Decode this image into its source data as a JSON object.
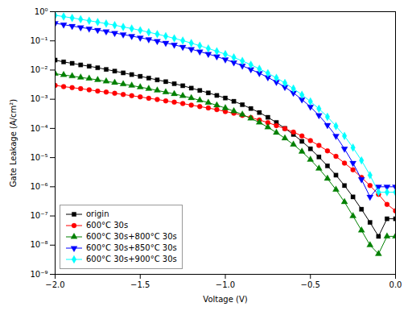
{
  "chart_data": {
    "type": "line",
    "xlabel": "Voltage (V)",
    "ylabel": "Gate Leakage (A/cm²)",
    "log": "y",
    "legend": "lower left",
    "xlim": [
      -2.0,
      0.0
    ],
    "xticks": [
      {
        "value": -2.0,
        "label": "−2.0"
      },
      {
        "value": -1.5,
        "label": "−1.5"
      },
      {
        "value": -1.0,
        "label": "−1.0"
      },
      {
        "value": -0.5,
        "label": "−0.5"
      },
      {
        "value": 0.0,
        "label": "0.0"
      }
    ],
    "ylim": [
      1e-09,
      1
    ],
    "yticks": [
      {
        "value": 1e-09,
        "label": "10⁻⁹"
      },
      {
        "value": 1e-08,
        "label": "10⁻⁸"
      },
      {
        "value": 1e-07,
        "label": "10⁻⁷"
      },
      {
        "value": 1e-06,
        "label": "10⁻⁶"
      },
      {
        "value": 1e-05,
        "label": "10⁻⁵"
      },
      {
        "value": 0.0001,
        "label": "10⁻⁴"
      },
      {
        "value": 0.001,
        "label": "10⁻³"
      },
      {
        "value": 0.01,
        "label": "10⁻²"
      },
      {
        "value": 0.1,
        "label": "10⁻¹"
      },
      {
        "value": 1,
        "label": "10⁰"
      }
    ],
    "x": [
      -2.0,
      -1.95,
      -1.9,
      -1.85,
      -1.8,
      -1.75,
      -1.7,
      -1.65,
      -1.6,
      -1.55,
      -1.5,
      -1.45,
      -1.4,
      -1.35,
      -1.3,
      -1.25,
      -1.2,
      -1.15,
      -1.1,
      -1.05,
      -1.0,
      -0.95,
      -0.9,
      -0.85,
      -0.8,
      -0.75,
      -0.7,
      -0.65,
      -0.6,
      -0.55,
      -0.5,
      -0.45,
      -0.4,
      -0.35,
      -0.3,
      -0.25,
      -0.2,
      -0.15,
      -0.1,
      -0.05,
      0.0
    ],
    "series": [
      {
        "name": "origin",
        "color": "black",
        "marker": "square",
        "values": [
          0.022,
          0.019,
          0.017,
          0.015,
          0.0135,
          0.012,
          0.0105,
          0.0092,
          0.008,
          0.007,
          0.0061,
          0.0053,
          0.0046,
          0.004,
          0.0034,
          0.0029,
          0.0024,
          0.002,
          0.00165,
          0.00135,
          0.0011,
          0.00085,
          0.00065,
          0.00048,
          0.00035,
          0.00024,
          0.00016,
          0.0001,
          6.2e-05,
          3.6e-05,
          2e-05,
          1.05e-05,
          5.2e-06,
          2.5e-06,
          1.1e-06,
          4.5e-07,
          1.7e-07,
          6e-08,
          2e-08,
          8e-08,
          8e-08
        ]
      },
      {
        "name": "600°C 30s",
        "color": "red",
        "marker": "circle",
        "values": [
          0.003,
          0.0027,
          0.0025,
          0.0023,
          0.0021,
          0.0019,
          0.00175,
          0.0016,
          0.00145,
          0.00132,
          0.0012,
          0.00108,
          0.00098,
          0.00088,
          0.00079,
          0.00071,
          0.00063,
          0.00056,
          0.0005,
          0.00044,
          0.00038,
          0.00033,
          0.00028,
          0.000235,
          0.000195,
          0.000158,
          0.000125,
          9.8e-05,
          7.5e-05,
          5.5e-05,
          3.8e-05,
          2.6e-05,
          1.7e-05,
          1.1e-05,
          6.5e-06,
          3.8e-06,
          2.1e-06,
          1.1e-06,
          5.5e-07,
          2.5e-07,
          1.5e-07
        ]
      },
      {
        "name": "600°C 30s+800°C 30s",
        "color": "green",
        "marker": "triangle-up",
        "values": [
          0.0075,
          0.0068,
          0.0062,
          0.0056,
          0.0051,
          0.0046,
          0.0041,
          0.0037,
          0.0033,
          0.00295,
          0.0026,
          0.0023,
          0.002,
          0.00175,
          0.00152,
          0.0013,
          0.0011,
          0.00092,
          0.00076,
          0.00062,
          0.0005,
          0.00039,
          0.0003,
          0.00022,
          0.00016,
          0.00011,
          7.2e-05,
          4.6e-05,
          2.8e-05,
          1.6e-05,
          8.5e-06,
          4.2e-06,
          1.9e-06,
          8e-07,
          3e-07,
          1e-07,
          3.2e-08,
          1e-08,
          5e-09,
          2e-08,
          2e-08
        ]
      },
      {
        "name": "600°C 30s+850°C 30s",
        "color": "blue",
        "marker": "triangle-down",
        "values": [
          0.4,
          0.36,
          0.32,
          0.29,
          0.26,
          0.235,
          0.21,
          0.185,
          0.165,
          0.145,
          0.128,
          0.112,
          0.098,
          0.085,
          0.073,
          0.062,
          0.052,
          0.043,
          0.0355,
          0.029,
          0.023,
          0.0182,
          0.014,
          0.0105,
          0.0078,
          0.0056,
          0.0039,
          0.0026,
          0.00165,
          0.00098,
          0.00055,
          0.00028,
          0.00013,
          5.5e-05,
          2e-05,
          6.5e-06,
          1.8e-06,
          4.5e-07,
          1e-06,
          1e-06,
          1e-06
        ]
      },
      {
        "name": "600°C 30s+900°C 30s",
        "color": "cyan",
        "marker": "diamond",
        "values": [
          0.75,
          0.68,
          0.61,
          0.55,
          0.49,
          0.44,
          0.39,
          0.345,
          0.3,
          0.265,
          0.23,
          0.198,
          0.17,
          0.145,
          0.122,
          0.102,
          0.084,
          0.068,
          0.055,
          0.044,
          0.035,
          0.027,
          0.0205,
          0.0152,
          0.011,
          0.0078,
          0.0054,
          0.0036,
          0.0023,
          0.00142,
          0.00084,
          0.00047,
          0.00025,
          0.00012,
          5.5e-05,
          2.2e-05,
          8e-06,
          2.5e-06,
          6.5e-07,
          6.5e-07,
          6.5e-07
        ]
      }
    ]
  }
}
